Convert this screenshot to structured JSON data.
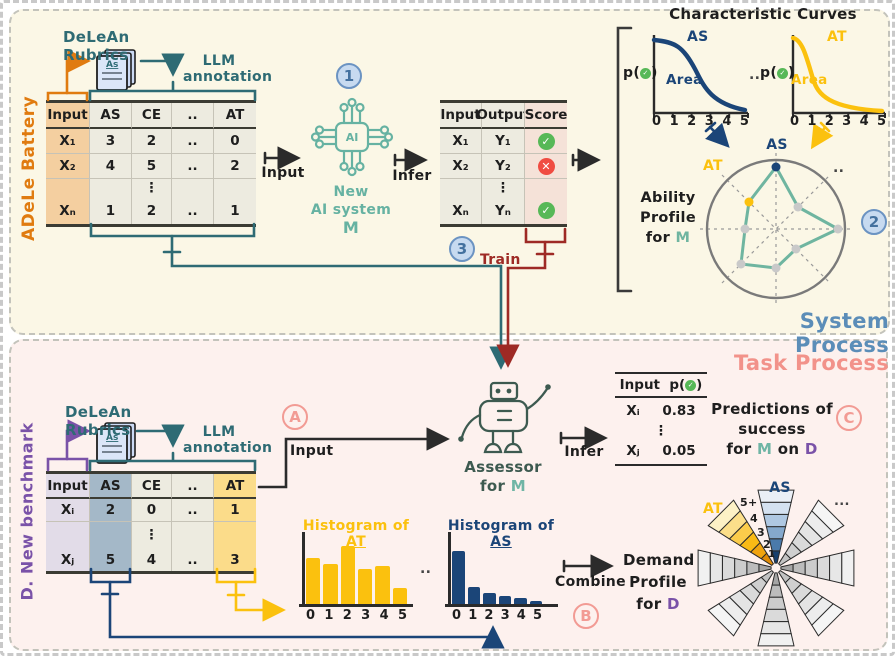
{
  "colors": {
    "orange": "#e07b10",
    "teal": "#2e6b74",
    "teal_light": "#66b2a2",
    "navy": "#1b4578",
    "yellow": "#fbc10e",
    "dark_red": "#9e2a25",
    "purple": "#7a52a8",
    "pink": "#f2928a",
    "steel_blue": "#5b8db8",
    "robot_green": "#3d5a50"
  },
  "system": {
    "process_label": "System Process",
    "battery_side_label": "ADeLe Battery",
    "rubrics_title": "DeLeAn Rubrics",
    "doc_label": "As",
    "llm_line1": "LLM",
    "llm_line2": "annotation",
    "input_label": "Input",
    "infer_label": "Infer",
    "train_label": "Train",
    "badge_1": "1",
    "badge_2": "2",
    "badge_3": "3",
    "ai_chip_label": "AI",
    "new_ai_line1": "New",
    "new_ai_line2": "AI system",
    "new_ai_line3": "M",
    "battery_table": {
      "h": [
        "Input",
        "AS",
        "CE",
        "..",
        "AT"
      ],
      "r1": [
        "X₁",
        "3",
        "2",
        "..",
        "0"
      ],
      "r2": [
        "X₂",
        "4",
        "5",
        "..",
        "2"
      ],
      "dots": "⋮",
      "r3": [
        "Xₙ",
        "1",
        "2",
        "..",
        "1"
      ]
    },
    "output_table": {
      "h": [
        "Input",
        "Output",
        "Score"
      ],
      "r1": [
        "X₁",
        "Y₁"
      ],
      "r2": [
        "X₂",
        "Y₂"
      ],
      "dots": "⋮",
      "r3": [
        "Xₙ",
        "Yₙ"
      ],
      "scores": [
        "pass",
        "fail",
        "pass"
      ]
    },
    "curves_title": "Characteristic Curves",
    "as_plot_label": "AS",
    "at_plot_label": "AT",
    "p_open": "p(",
    "p_close": ")",
    "area_label": "Area",
    "dots_between": "..",
    "radar_as": "AS",
    "radar_at": "AT",
    "radar_dots": "..",
    "ability_line1": "Ability",
    "ability_line2": "Profile",
    "ability_for": "for",
    "ability_m": "M",
    "ticks": [
      "0",
      "1",
      "2",
      "3",
      "4",
      "5"
    ]
  },
  "task": {
    "process_label": "Task Process",
    "benchmark_side_label": "D. New benchmark",
    "rubrics_title": "DeLeAn Rubrics",
    "doc_label": "As",
    "llm_line1": "LLM",
    "llm_line2": "annotation",
    "input_label": "Input",
    "infer_label": "Infer",
    "combine_label": "Combine",
    "badge_a": "A",
    "badge_b": "B",
    "badge_c": "C",
    "benchmark_table": {
      "h": [
        "Input",
        "AS",
        "CE",
        "..",
        "AT"
      ],
      "r1": [
        "Xᵢ",
        "2",
        "0",
        "..",
        "1"
      ],
      "dots": "⋮",
      "r2": [
        "Xⱼ",
        "5",
        "4",
        "..",
        "3"
      ]
    },
    "assessor_line1": "Assessor",
    "assessor_for": "for",
    "assessor_m": "M",
    "pred_table": {
      "h_input": "Input",
      "h_p_open": "p(",
      "h_p_close": ")",
      "r1": [
        "Xᵢ",
        "0.83"
      ],
      "dots": "⋮",
      "r2": [
        "Xⱼ",
        "0.05"
      ]
    },
    "pred_caption_l1": "Predictions of",
    "pred_caption_l2": "success",
    "pred_caption_for": "for",
    "pred_caption_m": "M",
    "pred_caption_on": "on",
    "pred_caption_d": "D",
    "hist_at_prefix": "Histogram of ",
    "hist_at_term": "AT",
    "hist_as_prefix": "Histogram of ",
    "hist_as_term": "AS",
    "hist_dots": "..",
    "fan_as": "AS",
    "fan_at": "AT",
    "fan_dots": "...",
    "fan_rings": [
      "5+",
      "4",
      "3",
      "2",
      "1"
    ],
    "demand_line1": "Demand",
    "demand_line2": "Profile",
    "demand_for": "for",
    "demand_d": "D",
    "ticks": [
      "0",
      "1",
      "2",
      "3",
      "4",
      "5"
    ]
  },
  "chart_data": [
    {
      "id": "characteristic_curve_AS",
      "type": "line",
      "title": "AS",
      "ylabel": "p(✓)",
      "x": [
        0,
        1,
        2,
        3,
        4,
        5
      ],
      "y": [
        0.97,
        0.93,
        0.8,
        0.45,
        0.12,
        0.04
      ],
      "annotation": "Area",
      "color": "#1b4578",
      "xlim": [
        0,
        5
      ],
      "ylim": [
        0,
        1
      ]
    },
    {
      "id": "characteristic_curve_AT",
      "type": "line",
      "title": "AT",
      "ylabel": "p(✓)",
      "x": [
        0,
        1,
        2,
        3,
        4,
        5
      ],
      "y": [
        0.97,
        0.85,
        0.38,
        0.12,
        0.05,
        0.03
      ],
      "annotation": "Area",
      "color": "#fbc10e",
      "xlim": [
        0,
        5
      ],
      "ylim": [
        0,
        1
      ]
    },
    {
      "id": "ability_profile_radar",
      "type": "radar",
      "axes": [
        "AS",
        "..",
        "",
        "",
        "",
        "",
        "",
        "AT"
      ],
      "values_norm": [
        0.9,
        0.45,
        0.9,
        0.4,
        0.57,
        0.72,
        0.45,
        0.55
      ],
      "series_color": "#6fb5a0",
      "point_colors": [
        "#1b4578",
        "#c9c9c9",
        "#c9c9c9",
        "#c9c9c9",
        "#c9c9c9",
        "#c9c9c9",
        "#c9c9c9",
        "#fbc10e"
      ]
    },
    {
      "id": "histogram_AT",
      "type": "bar",
      "title": "Histogram of AT",
      "categories": [
        "0",
        "1",
        "2",
        "3",
        "4",
        "5"
      ],
      "values_pct": [
        79,
        69,
        100,
        60,
        66,
        28
      ],
      "color": "#fbc10e"
    },
    {
      "id": "histogram_AS",
      "type": "bar",
      "title": "Histogram of AS",
      "categories": [
        "0",
        "1",
        "2",
        "3",
        "4",
        "5"
      ],
      "values_pct": [
        100,
        32,
        21,
        15,
        11,
        6
      ],
      "color": "#1b4578"
    },
    {
      "id": "demand_profile_fan",
      "type": "radial-fan",
      "labeled_wedges": [
        "AS",
        "AT",
        "..."
      ],
      "rings": [
        "1",
        "2",
        "3",
        "4",
        "5+"
      ],
      "wedge_angles_deg": [
        90,
        45,
        0,
        -45,
        -90,
        -135,
        180,
        135
      ],
      "wedge_palette_keys": [
        "AS",
        "grayA",
        "grayB",
        "grayA",
        "grayB",
        "grayA",
        "grayB",
        "AT"
      ],
      "palettes": {
        "AS": [
          "#17406e",
          "#4a7aab",
          "#85a9cd",
          "#afc8e2",
          "#d4e1f0",
          "#eaeff6"
        ],
        "AT": [
          "#e08a06",
          "#f0a40f",
          "#f9ba15",
          "#fbcc4b",
          "#fcdf8a",
          "#fdf1c6"
        ],
        "grayA": [
          "#c2c2c2",
          "#cfcfcf",
          "#dadada",
          "#e4e4e4",
          "#ededed",
          "#f5f5f5"
        ],
        "grayB": [
          "#a5a5a5",
          "#bcbcbc",
          "#cccccc",
          "#dadada",
          "#e7e7e7",
          "#f1f1f1"
        ]
      }
    }
  ]
}
